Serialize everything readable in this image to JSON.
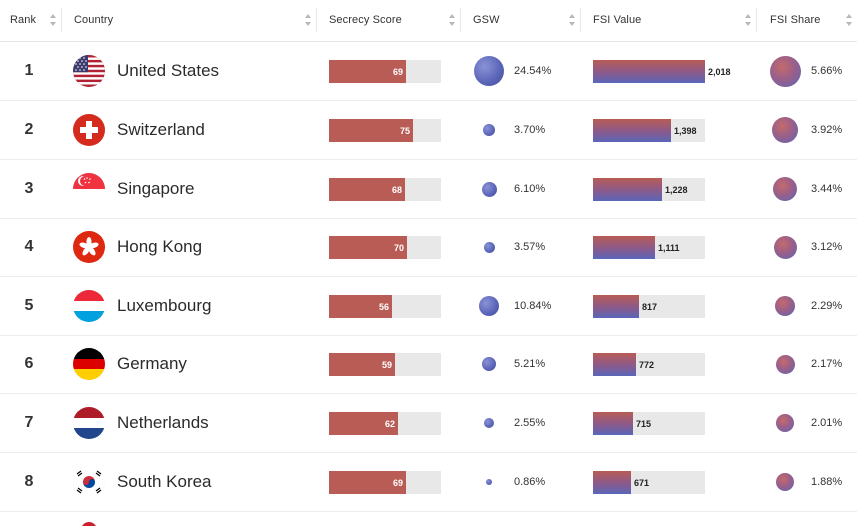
{
  "table": {
    "headers": {
      "rank": "Rank",
      "country": "Country",
      "secrecy_score": "Secrecy Score",
      "gsw": "GSW",
      "fsi_value": "FSI Value",
      "fsi_share": "FSI Share"
    },
    "colors": {
      "secrecy_bar": "#b85c55",
      "track": "#e8e8e8",
      "globe": "#5d67b9",
      "fsi_gradient_top": "#b85c55",
      "fsi_gradient_bottom": "#5a66b8"
    },
    "scales": {
      "secrecy_max": 100,
      "fsi_value_max": 2000,
      "gsw_max_percent": 24.54,
      "fsi_share_max_percent": 5.66
    },
    "rows": [
      {
        "rank": "1",
        "country": "United States",
        "flag_icon": "us-flag-icon",
        "secrecy_score": "69",
        "gsw": "24.54%",
        "fsi_value": "2,018",
        "fsi_share": "5.66%"
      },
      {
        "rank": "2",
        "country": "Switzerland",
        "flag_icon": "switzerland-flag-icon",
        "secrecy_score": "75",
        "gsw": "3.70%",
        "fsi_value": "1,398",
        "fsi_share": "3.92%"
      },
      {
        "rank": "3",
        "country": "Singapore",
        "flag_icon": "singapore-flag-icon",
        "secrecy_score": "68",
        "gsw": "6.10%",
        "fsi_value": "1,228",
        "fsi_share": "3.44%"
      },
      {
        "rank": "4",
        "country": "Hong Kong",
        "flag_icon": "hong-kong-flag-icon",
        "secrecy_score": "70",
        "gsw": "3.57%",
        "fsi_value": "1,111",
        "fsi_share": "3.12%"
      },
      {
        "rank": "5",
        "country": "Luxembourg",
        "flag_icon": "luxembourg-flag-icon",
        "secrecy_score": "56",
        "gsw": "10.84%",
        "fsi_value": "817",
        "fsi_share": "2.29%"
      },
      {
        "rank": "6",
        "country": "Germany",
        "flag_icon": "germany-flag-icon",
        "secrecy_score": "59",
        "gsw": "5.21%",
        "fsi_value": "772",
        "fsi_share": "2.17%"
      },
      {
        "rank": "7",
        "country": "Netherlands",
        "flag_icon": "netherlands-flag-icon",
        "secrecy_score": "62",
        "gsw": "2.55%",
        "fsi_value": "715",
        "fsi_share": "2.01%"
      },
      {
        "rank": "8",
        "country": "South Korea",
        "flag_icon": "south-korea-flag-icon",
        "secrecy_score": "69",
        "gsw": "0.86%",
        "fsi_value": "671",
        "fsi_share": "1.88%"
      }
    ]
  }
}
